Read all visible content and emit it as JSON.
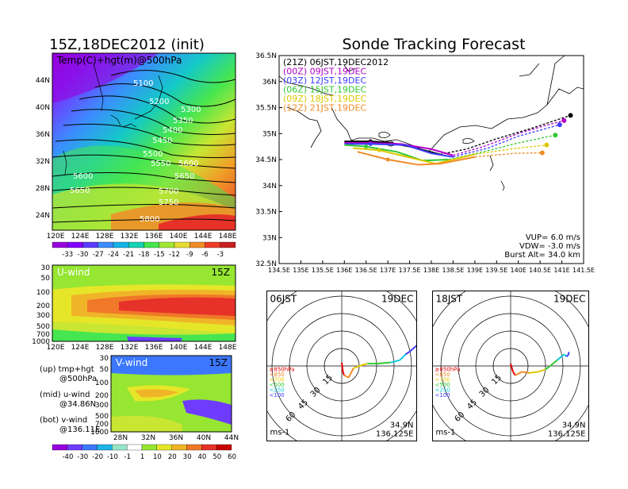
{
  "left": {
    "main_title": "15Z,18DEC2012 (init)",
    "map_label": "Temp(C)+hgt(m)@500hPa",
    "lat_labels": [
      "44N",
      "40N",
      "36N",
      "32N",
      "28N",
      "24N"
    ],
    "lon_labels": [
      "120E",
      "124E",
      "128E",
      "132E",
      "136E",
      "140E",
      "144E",
      "148E"
    ],
    "contour_labels": [
      "5100",
      "5200",
      "5300",
      "5350",
      "5400",
      "5450",
      "5500",
      "5550",
      "5600",
      "5600",
      "5650",
      "5650",
      "5700",
      "5750",
      "5800"
    ],
    "temp_scale": [
      "-33",
      "-30",
      "-27",
      "-24",
      "-21",
      "-18",
      "-15",
      "-12",
      "-9",
      "-6",
      "-3"
    ],
    "temp_colors": [
      "#9600dc",
      "#8200ff",
      "#5a3cff",
      "#3c8cff",
      "#14b4e6",
      "#14d2b4",
      "#46e650",
      "#a0e632",
      "#e6dc32",
      "#f08c28",
      "#f03c28",
      "#c81e1e"
    ],
    "u_panel": {
      "label": "U-wind",
      "time": "15Z",
      "levels": [
        "30",
        "50",
        "100",
        "200",
        "300",
        "500",
        "700",
        "1000"
      ],
      "lon_labels": [
        "120E",
        "124E",
        "128E",
        "132E",
        "136E",
        "140E",
        "144E",
        "148E"
      ]
    },
    "v_panel": {
      "label": "V-wind",
      "time": "15Z",
      "levels": [
        "30",
        "50",
        "100",
        "200",
        "300",
        "500",
        "700",
        "1000"
      ],
      "lat_labels": [
        "28N",
        "32N",
        "36N",
        "40N",
        "44N"
      ]
    },
    "notes": [
      {
        "a": "(up) tmp+hgt",
        "b": "@500hPa"
      },
      {
        "a": "(mid) u-wind",
        "b": "@34.86N"
      },
      {
        "a": "(bot) v-wind",
        "b": "@136.11E"
      }
    ],
    "wind_scale": [
      "-40",
      "-30",
      "-20",
      "-10",
      "-1",
      "1",
      "10",
      "20",
      "30",
      "40",
      "50",
      "60"
    ],
    "wind_colors": [
      "#9600dc",
      "#6e3cff",
      "#3c78ff",
      "#1eb4e6",
      "#96e6c8",
      "#ffffff",
      "#96e632",
      "#e6e628",
      "#f0b428",
      "#f07828",
      "#e63228",
      "#c80000"
    ]
  },
  "right": {
    "title": "Sonde Tracking Forecast",
    "lat_labels": [
      "36.5N",
      "36N",
      "35.5N",
      "35N",
      "34.5N",
      "34N",
      "33.5N",
      "33N",
      "32.5N"
    ],
    "lon_labels": [
      "134.5E",
      "135E",
      "135.5E",
      "136E",
      "136.5E",
      "137E",
      "137.5E",
      "138E",
      "138.5E",
      "139E",
      "139.5E",
      "140E",
      "140.5E",
      "141E",
      "141.5E"
    ],
    "legend": [
      {
        "text": "(21Z) 06JST,19DEC2012",
        "color": "#000000"
      },
      {
        "text": "(00Z) 09JST,19DEC",
        "color": "#b400c8"
      },
      {
        "text": "(03Z) 12JST,19DEC",
        "color": "#3c3cff"
      },
      {
        "text": "(06Z) 15JST,19DEC",
        "color": "#32c832"
      },
      {
        "text": "(09Z) 18JST,19DEC",
        "color": "#dcc800"
      },
      {
        "text": "(12Z) 21JST,19DEC",
        "color": "#f08c28"
      }
    ],
    "params": [
      "VUP= 6.0 m/s",
      "VDW= -3.0 m/s",
      "Burst Alt= 34.0 km"
    ],
    "hodo1": {
      "time": "06JST",
      "date": "19DEC",
      "lat": "34.9N",
      "lon": "136.125E",
      "unit": "ms-1"
    },
    "hodo2": {
      "time": "18JST",
      "date": "19DEC",
      "lat": "34.9N",
      "lon": "136.125E",
      "unit": "ms-1"
    },
    "ring_labels": [
      "15",
      "30",
      "45",
      "60"
    ],
    "hodo_legend": [
      {
        "text": "≥850hPa",
        "color": "#e60000"
      },
      {
        "text": "<850",
        "color": "#f08c28"
      },
      {
        "text": "<700",
        "color": "#e6c800"
      },
      {
        "text": "<500",
        "color": "#32c832"
      },
      {
        "text": "<250",
        "color": "#14c8dc"
      },
      {
        "text": "<100",
        "color": "#3c3cff"
      }
    ]
  },
  "chart_data": [
    {
      "type": "heatmap",
      "title": "15Z,18DEC2012 (init)",
      "subtitle": "Temp(C)+hgt(m)@500hPa",
      "xlim": [
        120,
        150
      ],
      "ylim": [
        22,
        47
      ],
      "contour_values": [
        5100,
        5200,
        5300,
        5350,
        5400,
        5450,
        5500,
        5550,
        5600,
        5650,
        5700,
        5750,
        5800
      ]
    },
    {
      "type": "line",
      "title": "Sonde Tracking Forecast",
      "xlim": [
        134.5,
        141.5
      ],
      "ylim": [
        32.5,
        36.5
      ],
      "series": [
        {
          "name": "(21Z) 06JST,19DEC2012",
          "color": "#000000",
          "x": [
            136.0,
            136.6,
            137.0,
            137.5,
            138.2,
            138.8,
            139.5,
            140.3,
            141.2
          ],
          "y": [
            34.85,
            34.85,
            34.83,
            34.75,
            34.6,
            34.7,
            34.9,
            35.1,
            35.35
          ]
        },
        {
          "name": "(00Z) 09JST,19DEC",
          "color": "#b400c8",
          "x": [
            136.0,
            136.6,
            137.3,
            138.0,
            138.5,
            139.2,
            140.0,
            140.6,
            141.05
          ],
          "y": [
            34.82,
            34.82,
            34.8,
            34.7,
            34.58,
            34.75,
            35.0,
            35.15,
            35.25
          ]
        },
        {
          "name": "(03Z) 12JST,19DEC",
          "color": "#3c3cff",
          "x": [
            136.0,
            136.6,
            137.4,
            138.0,
            138.5,
            139.3,
            140.0,
            140.95
          ],
          "y": [
            34.8,
            34.8,
            34.78,
            34.62,
            34.55,
            34.72,
            34.95,
            35.17
          ]
        },
        {
          "name": "(06Z) 15JST,19DEC",
          "color": "#32c832",
          "x": [
            136.0,
            136.5,
            137.2,
            137.8,
            138.4,
            139.2,
            140.0,
            140.85
          ],
          "y": [
            34.78,
            34.75,
            34.65,
            34.48,
            34.5,
            34.65,
            34.82,
            34.97
          ]
        },
        {
          "name": "(09Z) 18JST,19DEC",
          "color": "#dcc800",
          "x": [
            136.2,
            136.8,
            137.6,
            138.1,
            139.0,
            139.8,
            140.65
          ],
          "y": [
            34.72,
            34.68,
            34.52,
            34.42,
            34.6,
            34.7,
            34.78
          ]
        },
        {
          "name": "(12Z) 21JST,19DEC",
          "color": "#f08c28",
          "x": [
            136.3,
            137.0,
            137.7,
            138.2,
            139.0,
            139.9,
            140.55
          ],
          "y": [
            34.65,
            34.5,
            34.4,
            34.42,
            34.55,
            34.62,
            34.63
          ]
        }
      ]
    },
    {
      "type": "line",
      "title": "06JST 19DEC",
      "series": [
        {
          "name": "hodograph",
          "u": [
            0,
            1,
            2,
            6,
            10,
            15,
            22,
            30,
            42,
            50,
            55,
            58,
            65
          ],
          "v": [
            3,
            -5,
            -8,
            -10,
            -2,
            0,
            2,
            2,
            3,
            5,
            10,
            12,
            18
          ]
        }
      ]
    },
    {
      "type": "line",
      "title": "18JST 19DEC",
      "series": [
        {
          "name": "hodograph",
          "u": [
            0,
            2,
            4,
            10,
            16,
            24,
            30,
            34,
            40,
            46,
            48,
            50,
            50
          ],
          "v": [
            2,
            -5,
            -8,
            -5,
            -6,
            -5,
            -3,
            0,
            5,
            10,
            8,
            10,
            12
          ]
        }
      ]
    }
  ]
}
